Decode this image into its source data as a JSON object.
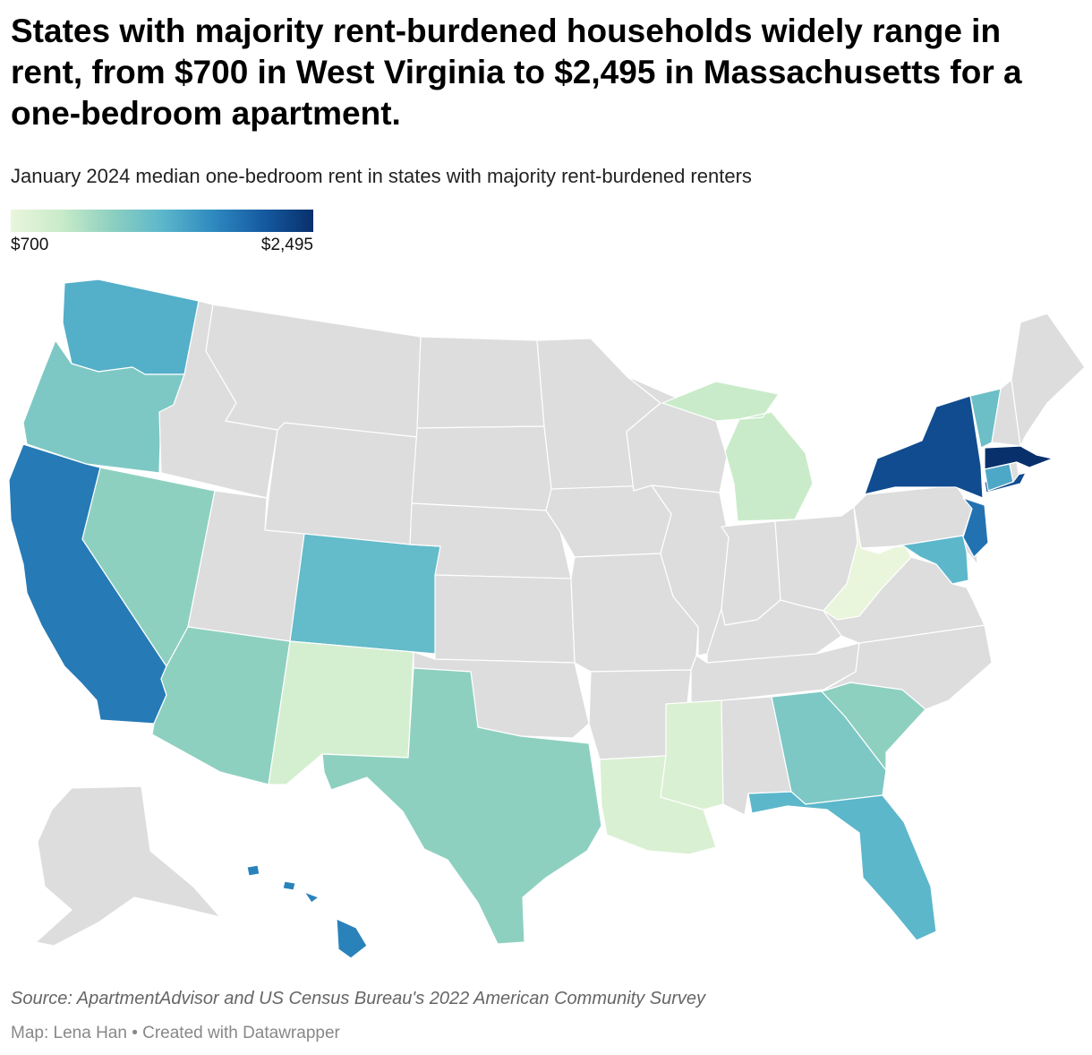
{
  "title": "States with majority rent-burdened households widely range in rent, from $700 in West Virginia to $2,495 in Massachusetts for a one-bedroom apartment.",
  "subtitle": "January 2024 median one-bedroom rent in states with majority rent-burdened renters",
  "chart_data": {
    "type": "choropleth",
    "value_label": "Median one-bedroom rent (USD)",
    "legend": {
      "min_label": "$700",
      "max_label": "$2,495",
      "min": 700,
      "max": 2495
    },
    "no_data_color": "#dddddd",
    "color_scale": [
      "#e9f6dc",
      "#c9ebc9",
      "#8ed0c0",
      "#5cb7cb",
      "#2f8ac0",
      "#155ba2",
      "#08306b"
    ],
    "states": [
      {
        "code": "MA",
        "name": "Massachusetts",
        "value": 2495
      },
      {
        "code": "NY",
        "name": "New York",
        "value": 2300
      },
      {
        "code": "NJ",
        "name": "New Jersey",
        "value": 2050
      },
      {
        "code": "CA",
        "name": "California",
        "value": 2000
      },
      {
        "code": "HI",
        "name": "Hawaii",
        "value": 1950
      },
      {
        "code": "CT",
        "name": "Connecticut",
        "value": 1700
      },
      {
        "code": "WA",
        "name": "Washington",
        "value": 1650
      },
      {
        "code": "FL",
        "name": "Florida",
        "value": 1600
      },
      {
        "code": "MD",
        "name": "Maryland",
        "value": 1600
      },
      {
        "code": "CO",
        "name": "Colorado",
        "value": 1550
      },
      {
        "code": "VT",
        "name": "Vermont",
        "value": 1500
      },
      {
        "code": "OR",
        "name": "Oregon",
        "value": 1400
      },
      {
        "code": "GA",
        "name": "Georgia",
        "value": 1400
      },
      {
        "code": "NV",
        "name": "Nevada",
        "value": 1300
      },
      {
        "code": "AZ",
        "name": "Arizona",
        "value": 1300
      },
      {
        "code": "TX",
        "name": "Texas",
        "value": 1300
      },
      {
        "code": "SC",
        "name": "South Carolina",
        "value": 1300
      },
      {
        "code": "MI",
        "name": "Michigan",
        "value": 1000
      },
      {
        "code": "NM",
        "name": "New Mexico",
        "value": 900
      },
      {
        "code": "LA",
        "name": "Louisiana",
        "value": 850
      },
      {
        "code": "MS",
        "name": "Mississippi",
        "value": 850
      },
      {
        "code": "WV",
        "name": "West Virginia",
        "value": 700
      }
    ]
  },
  "source": "Source: ApartmentAdvisor and US Census Bureau's 2022 American Community Survey",
  "credit": "Map: Lena Han • Created with Datawrapper"
}
